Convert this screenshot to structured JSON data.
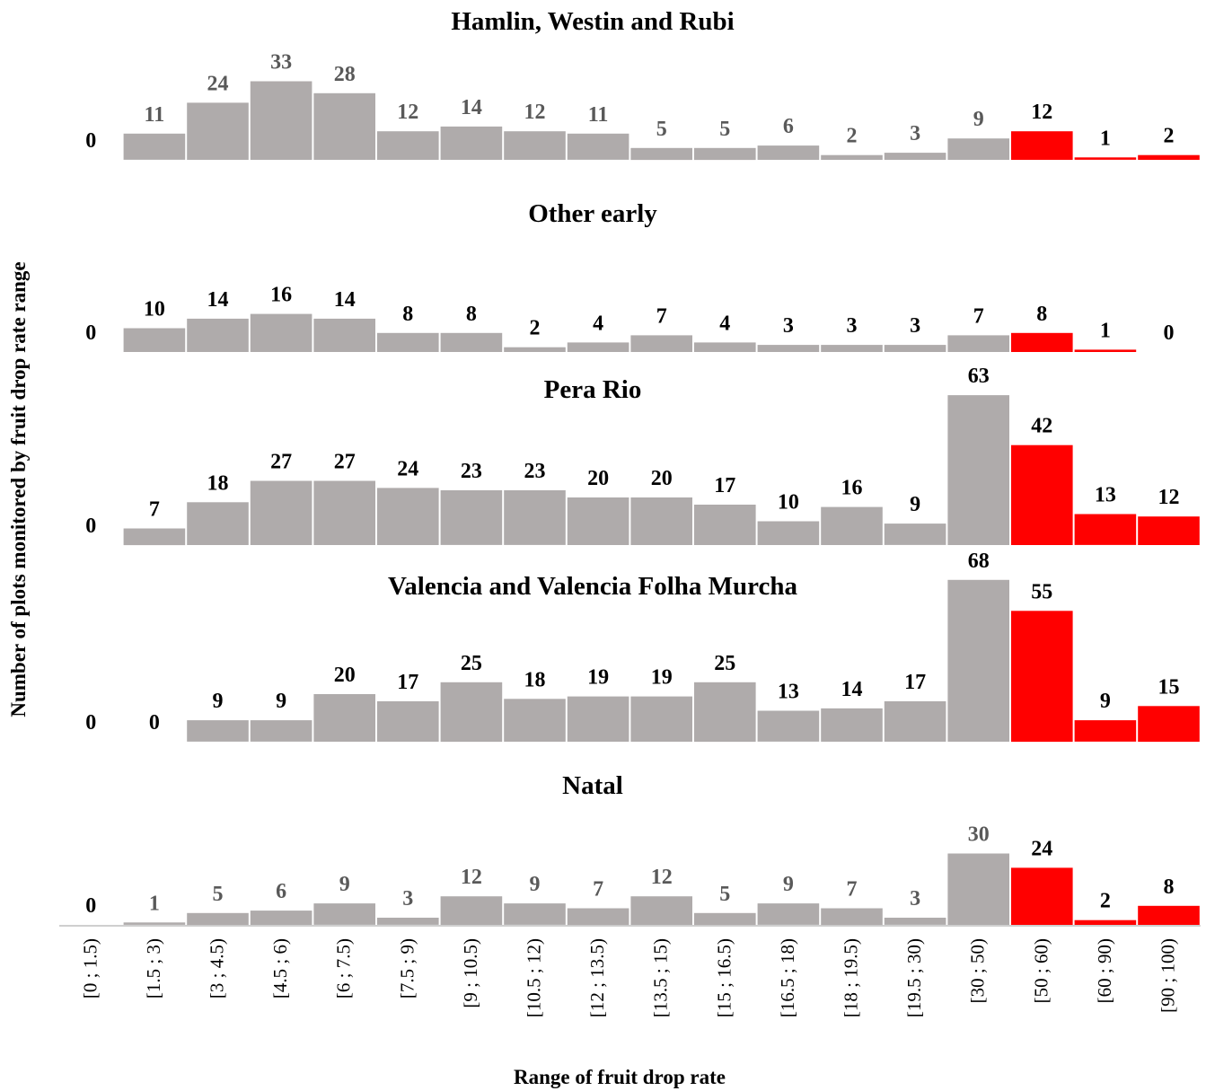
{
  "chart_data": {
    "type": "bar",
    "xlabel": "Range of fruit  drop rate",
    "ylabel": "Number of plots monitored by fruit  drop rate range",
    "categories": [
      "[0 ; 1.5)",
      "[1.5 ; 3)",
      "[3 ; 4.5)",
      "[4.5 ; 6)",
      "[6 ; 7.5)",
      "[7.5 ; 9)",
      "[9 ; 10.5)",
      "[10.5 ; 12)",
      "[12 ; 13.5)",
      "[13.5 ; 15)",
      "[15 ; 16.5)",
      "[16.5 ; 18)",
      "[18 ; 19.5)",
      "[19.5 ; 30)",
      "[30 ; 50)",
      "[50 ; 60)",
      "[60 ; 90)",
      "[90 ; 100)"
    ],
    "highlight_from_category": "[50 ; 60)",
    "colors": {
      "normal": "#afabab",
      "highlight": "#ff0000",
      "value_label_normal": "#595959",
      "value_label_emphasis": "#000000"
    },
    "panels": [
      {
        "title": "Hamlin, Westin and Rubi",
        "values": [
          0,
          11,
          24,
          33,
          28,
          12,
          14,
          12,
          11,
          5,
          5,
          6,
          2,
          3,
          9,
          12,
          1,
          2
        ]
      },
      {
        "title": "Other early",
        "values": [
          0,
          10,
          14,
          16,
          14,
          8,
          8,
          2,
          4,
          7,
          4,
          3,
          3,
          3,
          7,
          8,
          1,
          0
        ]
      },
      {
        "title": "Pera Rio",
        "values": [
          0,
          7,
          18,
          27,
          27,
          24,
          23,
          23,
          20,
          20,
          17,
          10,
          16,
          9,
          63,
          42,
          13,
          12
        ]
      },
      {
        "title": "Valencia and Valencia Folha Murcha",
        "values": [
          0,
          0,
          9,
          9,
          20,
          17,
          25,
          18,
          19,
          19,
          25,
          13,
          14,
          17,
          68,
          55,
          9,
          15
        ]
      },
      {
        "title": "Natal",
        "values": [
          0,
          1,
          5,
          6,
          9,
          3,
          12,
          9,
          7,
          12,
          5,
          9,
          7,
          3,
          30,
          24,
          2,
          8
        ]
      }
    ]
  }
}
